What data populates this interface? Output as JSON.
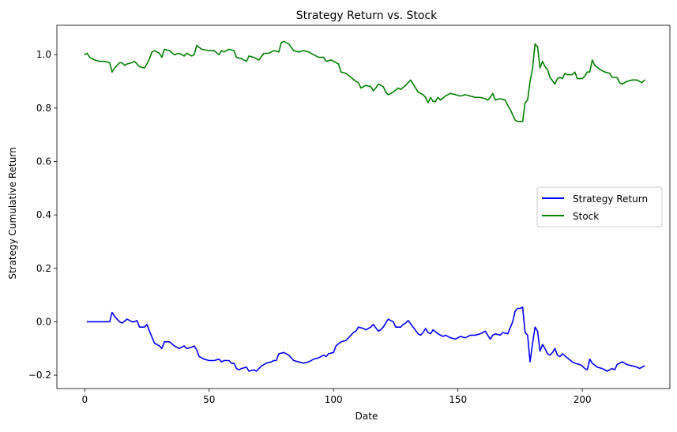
{
  "chart_data": {
    "type": "line",
    "title": "Strategy Return vs. Stock",
    "xlabel": "Date",
    "ylabel": "Strategy Cumulative Return",
    "xlim": [
      -11.2,
      235.2
    ],
    "ylim": [
      -0.25,
      1.11
    ],
    "xticks": [
      0,
      50,
      100,
      150,
      200
    ],
    "yticks": [
      -0.2,
      0.0,
      0.2,
      0.4,
      0.6,
      0.8,
      1.0
    ],
    "ytick_labels": [
      "−0.2",
      "0.0",
      "0.2",
      "0.4",
      "0.6",
      "0.8",
      "1.0"
    ],
    "grid": false,
    "legend": "center-right",
    "series": [
      {
        "name": "Strategy Return",
        "color": "#0000ff",
        "points": [
          [
            1,
            0.0
          ],
          [
            5,
            0.0
          ],
          [
            10,
            0.0
          ],
          [
            11,
            0.035
          ],
          [
            12,
            0.02
          ],
          [
            14,
            0.0
          ],
          [
            15,
            -0.005
          ],
          [
            17,
            0.01
          ],
          [
            19,
            0.0
          ],
          [
            20,
            0.0
          ],
          [
            21,
            0.005
          ],
          [
            22,
            -0.02
          ],
          [
            24,
            -0.02
          ],
          [
            25,
            -0.01
          ],
          [
            26,
            -0.035
          ],
          [
            28,
            -0.08
          ],
          [
            30,
            -0.09
          ],
          [
            31,
            -0.1
          ],
          [
            32,
            -0.075
          ],
          [
            34,
            -0.075
          ],
          [
            36,
            -0.09
          ],
          [
            38,
            -0.1
          ],
          [
            40,
            -0.09
          ],
          [
            41,
            -0.1
          ],
          [
            43,
            -0.095
          ],
          [
            44,
            -0.09
          ],
          [
            45,
            -0.105
          ],
          [
            46,
            -0.13
          ],
          [
            48,
            -0.14
          ],
          [
            50,
            -0.145
          ],
          [
            52,
            -0.145
          ],
          [
            54,
            -0.14
          ],
          [
            55,
            -0.15
          ],
          [
            56,
            -0.145
          ],
          [
            58,
            -0.145
          ],
          [
            59,
            -0.155
          ],
          [
            60,
            -0.155
          ],
          [
            61,
            -0.175
          ],
          [
            62,
            -0.18
          ],
          [
            63,
            -0.175
          ],
          [
            65,
            -0.17
          ],
          [
            66,
            -0.185
          ],
          [
            68,
            -0.18
          ],
          [
            69,
            -0.185
          ],
          [
            71,
            -0.165
          ],
          [
            73,
            -0.155
          ],
          [
            75,
            -0.15
          ],
          [
            76,
            -0.145
          ],
          [
            77,
            -0.145
          ],
          [
            78,
            -0.12
          ],
          [
            80,
            -0.115
          ],
          [
            82,
            -0.125
          ],
          [
            84,
            -0.145
          ],
          [
            86,
            -0.15
          ],
          [
            88,
            -0.155
          ],
          [
            90,
            -0.15
          ],
          [
            92,
            -0.14
          ],
          [
            94,
            -0.135
          ],
          [
            96,
            -0.125
          ],
          [
            97,
            -0.13
          ],
          [
            98,
            -0.12
          ],
          [
            100,
            -0.115
          ],
          [
            101,
            -0.09
          ],
          [
            103,
            -0.075
          ],
          [
            105,
            -0.07
          ],
          [
            107,
            -0.05
          ],
          [
            108,
            -0.04
          ],
          [
            109,
            -0.035
          ],
          [
            110,
            -0.02
          ],
          [
            112,
            -0.025
          ],
          [
            113,
            -0.03
          ],
          [
            115,
            -0.02
          ],
          [
            116,
            -0.01
          ],
          [
            118,
            -0.035
          ],
          [
            119,
            -0.03
          ],
          [
            120,
            -0.02
          ],
          [
            121,
            -0.005
          ],
          [
            122,
            0.01
          ],
          [
            123,
            0.005
          ],
          [
            124,
            0.0
          ],
          [
            125,
            -0.02
          ],
          [
            127,
            -0.02
          ],
          [
            128,
            -0.01
          ],
          [
            129,
            -0.005
          ],
          [
            130,
            0.005
          ],
          [
            132,
            -0.02
          ],
          [
            134,
            -0.045
          ],
          [
            135,
            -0.05
          ],
          [
            136,
            -0.04
          ],
          [
            137,
            -0.025
          ],
          [
            138,
            -0.04
          ],
          [
            139,
            -0.045
          ],
          [
            140,
            -0.03
          ],
          [
            142,
            -0.045
          ],
          [
            144,
            -0.055
          ],
          [
            145,
            -0.05
          ],
          [
            147,
            -0.06
          ],
          [
            149,
            -0.065
          ],
          [
            151,
            -0.055
          ],
          [
            153,
            -0.06
          ],
          [
            155,
            -0.05
          ],
          [
            157,
            -0.05
          ],
          [
            159,
            -0.045
          ],
          [
            160,
            -0.04
          ],
          [
            161,
            -0.035
          ],
          [
            163,
            -0.065
          ],
          [
            164,
            -0.05
          ],
          [
            165,
            -0.045
          ],
          [
            167,
            -0.05
          ],
          [
            168,
            -0.04
          ],
          [
            170,
            -0.045
          ],
          [
            172,
            0.0
          ],
          [
            173,
            0.04
          ],
          [
            174,
            0.05
          ],
          [
            175,
            0.05
          ],
          [
            176,
            0.055
          ],
          [
            177,
            -0.04
          ],
          [
            178,
            -0.05
          ],
          [
            179,
            -0.15
          ],
          [
            180,
            -0.08
          ],
          [
            181,
            -0.02
          ],
          [
            182,
            -0.035
          ],
          [
            183,
            -0.11
          ],
          [
            184,
            -0.085
          ],
          [
            185,
            -0.1
          ],
          [
            186,
            -0.12
          ],
          [
            187,
            -0.125
          ],
          [
            188,
            -0.115
          ],
          [
            189,
            -0.1
          ],
          [
            190,
            -0.125
          ],
          [
            191,
            -0.13
          ],
          [
            192,
            -0.12
          ],
          [
            194,
            -0.135
          ],
          [
            196,
            -0.15
          ],
          [
            197,
            -0.155
          ],
          [
            199,
            -0.16
          ],
          [
            200,
            -0.165
          ],
          [
            201,
            -0.175
          ],
          [
            202,
            -0.18
          ],
          [
            203,
            -0.14
          ],
          [
            204,
            -0.155
          ],
          [
            206,
            -0.17
          ],
          [
            208,
            -0.175
          ],
          [
            210,
            -0.185
          ],
          [
            212,
            -0.175
          ],
          [
            213,
            -0.18
          ],
          [
            214,
            -0.16
          ],
          [
            216,
            -0.15
          ],
          [
            218,
            -0.16
          ],
          [
            220,
            -0.165
          ],
          [
            222,
            -0.17
          ],
          [
            223,
            -0.175
          ],
          [
            225,
            -0.165
          ]
        ]
      },
      {
        "name": "Stock",
        "color": "#008000",
        "points": [
          [
            0,
            1.0
          ],
          [
            1,
            1.005
          ],
          [
            2,
            0.99
          ],
          [
            4,
            0.98
          ],
          [
            6,
            0.975
          ],
          [
            8,
            0.975
          ],
          [
            10,
            0.97
          ],
          [
            11,
            0.935
          ],
          [
            12,
            0.95
          ],
          [
            14,
            0.97
          ],
          [
            15,
            0.97
          ],
          [
            16,
            0.96
          ],
          [
            17,
            0.965
          ],
          [
            19,
            0.97
          ],
          [
            20,
            0.975
          ],
          [
            22,
            0.955
          ],
          [
            24,
            0.95
          ],
          [
            25,
            0.965
          ],
          [
            26,
            0.985
          ],
          [
            27,
            1.01
          ],
          [
            28,
            1.015
          ],
          [
            30,
            1.005
          ],
          [
            31,
            0.99
          ],
          [
            32,
            1.02
          ],
          [
            34,
            1.015
          ],
          [
            36,
            1.0
          ],
          [
            38,
            1.005
          ],
          [
            40,
            0.995
          ],
          [
            41,
            1.005
          ],
          [
            43,
            0.995
          ],
          [
            44,
            1.0
          ],
          [
            45,
            1.035
          ],
          [
            47,
            1.02
          ],
          [
            50,
            1.015
          ],
          [
            52,
            1.015
          ],
          [
            54,
            1.0
          ],
          [
            55,
            1.015
          ],
          [
            56,
            1.01
          ],
          [
            58,
            1.02
          ],
          [
            60,
            1.015
          ],
          [
            61,
            0.99
          ],
          [
            63,
            0.985
          ],
          [
            65,
            0.975
          ],
          [
            66,
            0.995
          ],
          [
            68,
            0.99
          ],
          [
            70,
            0.98
          ],
          [
            72,
            1.005
          ],
          [
            74,
            1.005
          ],
          [
            76,
            1.015
          ],
          [
            78,
            1.01
          ],
          [
            79,
            1.045
          ],
          [
            80,
            1.05
          ],
          [
            82,
            1.04
          ],
          [
            84,
            1.015
          ],
          [
            86,
            1.01
          ],
          [
            88,
            1.015
          ],
          [
            90,
            1.01
          ],
          [
            92,
            1.0
          ],
          [
            94,
            0.99
          ],
          [
            96,
            0.99
          ],
          [
            97,
            0.975
          ],
          [
            99,
            0.98
          ],
          [
            100,
            0.975
          ],
          [
            102,
            0.965
          ],
          [
            103,
            0.935
          ],
          [
            105,
            0.93
          ],
          [
            107,
            0.915
          ],
          [
            109,
            0.9
          ],
          [
            110,
            0.895
          ],
          [
            111,
            0.875
          ],
          [
            113,
            0.885
          ],
          [
            115,
            0.88
          ],
          [
            116,
            0.865
          ],
          [
            117,
            0.875
          ],
          [
            118,
            0.89
          ],
          [
            120,
            0.88
          ],
          [
            121,
            0.86
          ],
          [
            122,
            0.85
          ],
          [
            124,
            0.86
          ],
          [
            126,
            0.875
          ],
          [
            127,
            0.87
          ],
          [
            129,
            0.885
          ],
          [
            130,
            0.895
          ],
          [
            131,
            0.905
          ],
          [
            132,
            0.89
          ],
          [
            134,
            0.86
          ],
          [
            136,
            0.85
          ],
          [
            137,
            0.84
          ],
          [
            138,
            0.82
          ],
          [
            139,
            0.84
          ],
          [
            140,
            0.825
          ],
          [
            141,
            0.825
          ],
          [
            142,
            0.84
          ],
          [
            143,
            0.83
          ],
          [
            145,
            0.845
          ],
          [
            147,
            0.855
          ],
          [
            149,
            0.85
          ],
          [
            151,
            0.845
          ],
          [
            153,
            0.85
          ],
          [
            155,
            0.845
          ],
          [
            157,
            0.84
          ],
          [
            159,
            0.84
          ],
          [
            161,
            0.835
          ],
          [
            162,
            0.83
          ],
          [
            163,
            0.84
          ],
          [
            164,
            0.855
          ],
          [
            165,
            0.83
          ],
          [
            167,
            0.835
          ],
          [
            169,
            0.83
          ],
          [
            170,
            0.81
          ],
          [
            171,
            0.795
          ],
          [
            172,
            0.775
          ],
          [
            173,
            0.755
          ],
          [
            174,
            0.75
          ],
          [
            176,
            0.75
          ],
          [
            177,
            0.82
          ],
          [
            178,
            0.83
          ],
          [
            179,
            0.9
          ],
          [
            180,
            0.95
          ],
          [
            181,
            1.04
          ],
          [
            182,
            1.03
          ],
          [
            183,
            0.95
          ],
          [
            184,
            0.975
          ],
          [
            185,
            0.955
          ],
          [
            186,
            0.945
          ],
          [
            187,
            0.915
          ],
          [
            189,
            0.89
          ],
          [
            190,
            0.91
          ],
          [
            191,
            0.915
          ],
          [
            192,
            0.91
          ],
          [
            193,
            0.93
          ],
          [
            194,
            0.925
          ],
          [
            196,
            0.925
          ],
          [
            197,
            0.935
          ],
          [
            198,
            0.91
          ],
          [
            200,
            0.91
          ],
          [
            201,
            0.92
          ],
          [
            202,
            0.935
          ],
          [
            203,
            0.935
          ],
          [
            204,
            0.98
          ],
          [
            205,
            0.96
          ],
          [
            207,
            0.945
          ],
          [
            209,
            0.935
          ],
          [
            211,
            0.93
          ],
          [
            212,
            0.915
          ],
          [
            214,
            0.915
          ],
          [
            215,
            0.895
          ],
          [
            216,
            0.89
          ],
          [
            218,
            0.9
          ],
          [
            220,
            0.905
          ],
          [
            222,
            0.905
          ],
          [
            223,
            0.9
          ],
          [
            224,
            0.895
          ],
          [
            225,
            0.905
          ]
        ]
      }
    ]
  }
}
